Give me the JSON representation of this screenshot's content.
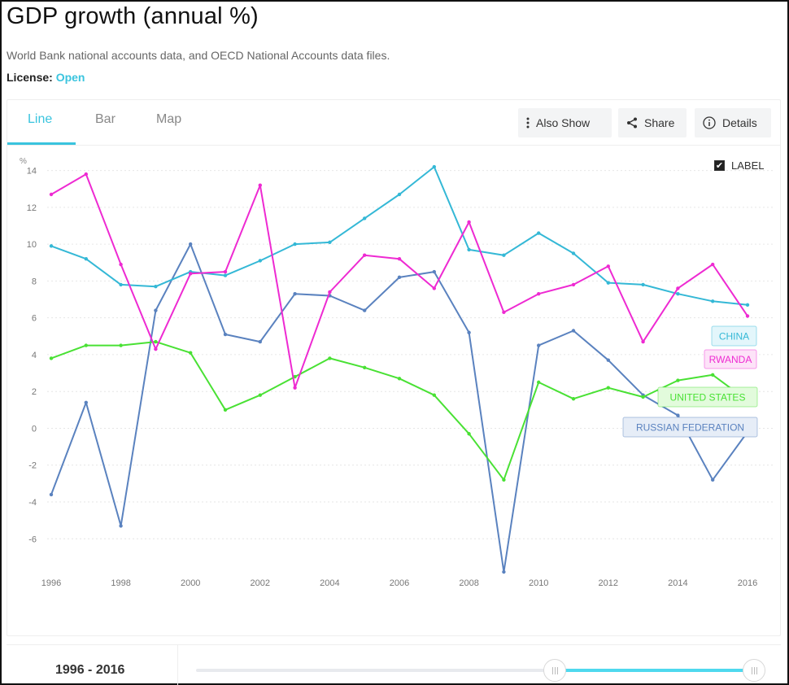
{
  "header": {
    "title": "GDP growth (annual %)",
    "source": "World Bank national accounts data, and OECD National Accounts data files.",
    "license_label": "License:",
    "license_value": "Open"
  },
  "tabs": [
    {
      "label": "Line",
      "active": true
    },
    {
      "label": "Bar",
      "active": false
    },
    {
      "label": "Map",
      "active": false
    }
  ],
  "toolbar": {
    "also_show": "Also Show",
    "share": "Share",
    "details": "Details"
  },
  "label_toggle": {
    "label": "LABEL",
    "checked": true
  },
  "range": {
    "label": "1996 - 2016",
    "start_fraction": 0.63,
    "end_fraction": 0.98
  },
  "colors": {
    "china": "#34b8d6",
    "rwanda": "#ee2ad2",
    "united_states": "#49e134",
    "russia": "#5a82bf",
    "accent": "#3ac4de"
  },
  "chart_data": {
    "type": "line",
    "ylabel": "%",
    "ylim": [
      -7.8,
      14.6
    ],
    "yticks": [
      14,
      12,
      10,
      8,
      6,
      4,
      2,
      0,
      -2,
      -4,
      -6
    ],
    "x": [
      1996,
      1997,
      1998,
      1999,
      2000,
      2001,
      2002,
      2003,
      2004,
      2005,
      2006,
      2007,
      2008,
      2009,
      2010,
      2011,
      2012,
      2013,
      2014,
      2015,
      2016
    ],
    "xticks": [
      1996,
      1998,
      2000,
      2002,
      2004,
      2006,
      2008,
      2010,
      2012,
      2014,
      2016
    ],
    "grid": "horizontal-dotted",
    "series": [
      {
        "name": "CHINA",
        "key": "china",
        "values": [
          9.9,
          9.2,
          7.8,
          7.7,
          8.5,
          8.3,
          9.1,
          10.0,
          10.1,
          11.4,
          12.7,
          14.2,
          9.7,
          9.4,
          10.6,
          9.5,
          7.9,
          7.8,
          7.3,
          6.9,
          6.7
        ]
      },
      {
        "name": "RWANDA",
        "key": "rwanda",
        "values": [
          12.7,
          13.8,
          8.9,
          4.3,
          8.4,
          8.5,
          13.2,
          2.2,
          7.4,
          9.4,
          9.2,
          7.6,
          11.2,
          6.3,
          7.3,
          7.8,
          8.8,
          4.7,
          7.6,
          8.9,
          6.1
        ]
      },
      {
        "name": "UNITED STATES",
        "key": "united_states",
        "values": [
          3.8,
          4.5,
          4.5,
          4.7,
          4.1,
          1.0,
          1.8,
          2.8,
          3.8,
          3.3,
          2.7,
          1.8,
          -0.3,
          -2.8,
          2.5,
          1.6,
          2.2,
          1.7,
          2.6,
          2.9,
          1.5
        ]
      },
      {
        "name": "RUSSIAN FEDERATION",
        "key": "russia",
        "values": [
          -3.6,
          1.4,
          -5.3,
          6.4,
          10.0,
          5.1,
          4.7,
          7.3,
          7.2,
          6.4,
          8.2,
          8.5,
          5.2,
          -7.8,
          4.5,
          5.3,
          3.7,
          1.8,
          0.7,
          -2.8,
          -0.2
        ]
      }
    ]
  }
}
